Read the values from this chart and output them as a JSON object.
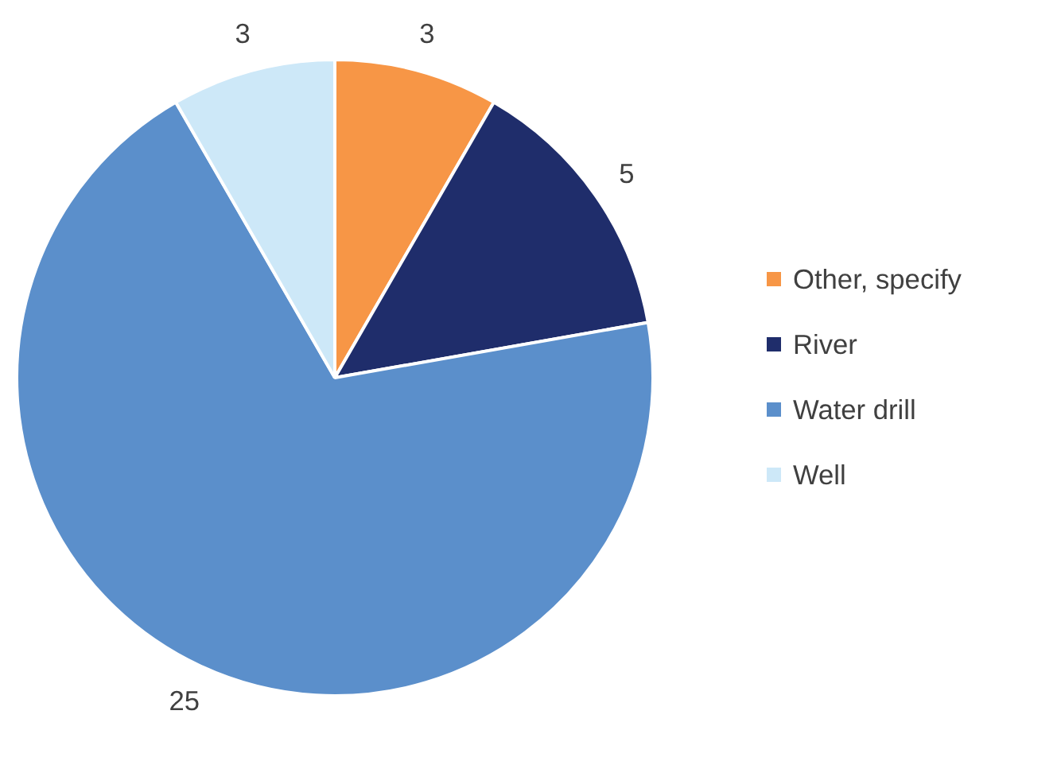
{
  "chart_data": {
    "type": "pie",
    "categories": [
      "Other, specify",
      "River",
      "Water drill",
      "Well"
    ],
    "values": [
      3,
      5,
      25,
      3
    ],
    "colors": [
      "#f79646",
      "#1f2d6b",
      "#5b8fcb",
      "#cde8f8"
    ],
    "data_labels": true,
    "legend": "right"
  }
}
